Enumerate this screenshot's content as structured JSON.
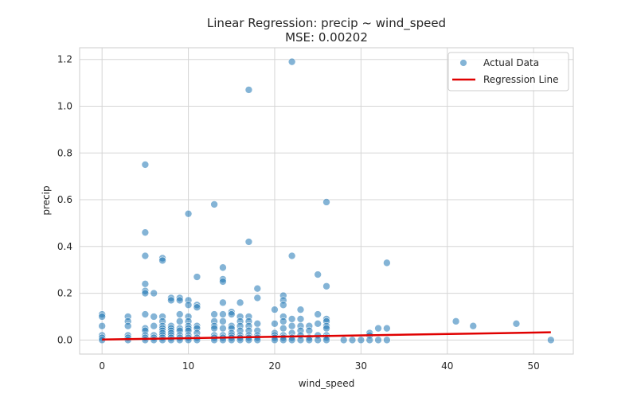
{
  "chart_data": {
    "type": "scatter",
    "title": "Linear Regression: precip ~ wind_speed",
    "subtitle": "MSE: 0.00202",
    "xlabel": "wind_speed",
    "ylabel": "precip",
    "xlim": [
      -2.6,
      54.6
    ],
    "ylim": [
      -0.06,
      1.25
    ],
    "xticks": [
      0,
      10,
      20,
      30,
      40,
      50
    ],
    "yticks": [
      0.0,
      0.2,
      0.4,
      0.6,
      0.8,
      1.0,
      1.2
    ],
    "xtick_labels": [
      "0",
      "10",
      "20",
      "30",
      "40",
      "50"
    ],
    "ytick_labels": [
      "0.0",
      "0.2",
      "0.4",
      "0.6",
      "0.8",
      "1.0",
      "1.2"
    ],
    "grid": true,
    "legend_position": "top-right",
    "colors": {
      "points": "#1f77b4",
      "regression": "#e00000",
      "grid": "#d5d5d5"
    },
    "series": [
      {
        "name": "Actual Data",
        "kind": "scatter",
        "points": [
          [
            0,
            0.11
          ],
          [
            0,
            0.1
          ],
          [
            0,
            0.06
          ],
          [
            0,
            0.02
          ],
          [
            0,
            0.01
          ],
          [
            0,
            0.0
          ],
          [
            3,
            0.1
          ],
          [
            3,
            0.08
          ],
          [
            3,
            0.06
          ],
          [
            3,
            0.02
          ],
          [
            3,
            0.01
          ],
          [
            3,
            0.0
          ],
          [
            5,
            0.75
          ],
          [
            5,
            0.46
          ],
          [
            5,
            0.36
          ],
          [
            5,
            0.24
          ],
          [
            5,
            0.21
          ],
          [
            5,
            0.2
          ],
          [
            5,
            0.11
          ],
          [
            5,
            0.05
          ],
          [
            5,
            0.04
          ],
          [
            5,
            0.02
          ],
          [
            5,
            0.01
          ],
          [
            5,
            0.0
          ],
          [
            6,
            0.2
          ],
          [
            6,
            0.1
          ],
          [
            6,
            0.06
          ],
          [
            6,
            0.02
          ],
          [
            6,
            0.01
          ],
          [
            6,
            0.0
          ],
          [
            7,
            0.35
          ],
          [
            7,
            0.34
          ],
          [
            7,
            0.1
          ],
          [
            7,
            0.08
          ],
          [
            7,
            0.06
          ],
          [
            7,
            0.05
          ],
          [
            7,
            0.04
          ],
          [
            7,
            0.03
          ],
          [
            7,
            0.02
          ],
          [
            7,
            0.01
          ],
          [
            7,
            0.0
          ],
          [
            8,
            0.18
          ],
          [
            8,
            0.17
          ],
          [
            8,
            0.06
          ],
          [
            8,
            0.05
          ],
          [
            8,
            0.04
          ],
          [
            8,
            0.03
          ],
          [
            8,
            0.02
          ],
          [
            8,
            0.01
          ],
          [
            8,
            0.0
          ],
          [
            9,
            0.18
          ],
          [
            9,
            0.17
          ],
          [
            9,
            0.11
          ],
          [
            9,
            0.08
          ],
          [
            9,
            0.05
          ],
          [
            9,
            0.04
          ],
          [
            9,
            0.02
          ],
          [
            9,
            0.01
          ],
          [
            9,
            0.0
          ],
          [
            10,
            0.54
          ],
          [
            10,
            0.17
          ],
          [
            10,
            0.15
          ],
          [
            10,
            0.1
          ],
          [
            10,
            0.08
          ],
          [
            10,
            0.06
          ],
          [
            10,
            0.05
          ],
          [
            10,
            0.04
          ],
          [
            10,
            0.02
          ],
          [
            10,
            0.01
          ],
          [
            10,
            0.0
          ],
          [
            11,
            0.27
          ],
          [
            11,
            0.15
          ],
          [
            11,
            0.14
          ],
          [
            11,
            0.06
          ],
          [
            11,
            0.05
          ],
          [
            11,
            0.03
          ],
          [
            11,
            0.01
          ],
          [
            11,
            0.0
          ],
          [
            13,
            0.58
          ],
          [
            13,
            0.11
          ],
          [
            13,
            0.08
          ],
          [
            13,
            0.06
          ],
          [
            13,
            0.05
          ],
          [
            13,
            0.02
          ],
          [
            13,
            0.01
          ],
          [
            13,
            0.0
          ],
          [
            14,
            0.31
          ],
          [
            14,
            0.26
          ],
          [
            14,
            0.25
          ],
          [
            14,
            0.16
          ],
          [
            14,
            0.11
          ],
          [
            14,
            0.08
          ],
          [
            14,
            0.05
          ],
          [
            14,
            0.02
          ],
          [
            14,
            0.01
          ],
          [
            14,
            0.0
          ],
          [
            15,
            0.12
          ],
          [
            15,
            0.11
          ],
          [
            15,
            0.06
          ],
          [
            15,
            0.05
          ],
          [
            15,
            0.03
          ],
          [
            15,
            0.02
          ],
          [
            15,
            0.01
          ],
          [
            15,
            0.0
          ],
          [
            16,
            0.16
          ],
          [
            16,
            0.1
          ],
          [
            16,
            0.08
          ],
          [
            16,
            0.06
          ],
          [
            16,
            0.04
          ],
          [
            16,
            0.02
          ],
          [
            16,
            0.01
          ],
          [
            16,
            0.0
          ],
          [
            17,
            1.07
          ],
          [
            17,
            0.42
          ],
          [
            17,
            0.1
          ],
          [
            17,
            0.08
          ],
          [
            17,
            0.06
          ],
          [
            17,
            0.04
          ],
          [
            17,
            0.02
          ],
          [
            17,
            0.01
          ],
          [
            17,
            0.0
          ],
          [
            18,
            0.22
          ],
          [
            18,
            0.18
          ],
          [
            18,
            0.07
          ],
          [
            18,
            0.04
          ],
          [
            18,
            0.02
          ],
          [
            18,
            0.01
          ],
          [
            18,
            0.0
          ],
          [
            20,
            0.13
          ],
          [
            20,
            0.07
          ],
          [
            20,
            0.03
          ],
          [
            20,
            0.02
          ],
          [
            20,
            0.01
          ],
          [
            20,
            0.0
          ],
          [
            21,
            0.19
          ],
          [
            21,
            0.17
          ],
          [
            21,
            0.15
          ],
          [
            21,
            0.1
          ],
          [
            21,
            0.08
          ],
          [
            21,
            0.05
          ],
          [
            21,
            0.02
          ],
          [
            21,
            0.01
          ],
          [
            21,
            0.0
          ],
          [
            22,
            1.19
          ],
          [
            22,
            0.36
          ],
          [
            22,
            0.09
          ],
          [
            22,
            0.06
          ],
          [
            22,
            0.03
          ],
          [
            22,
            0.01
          ],
          [
            22,
            0.0
          ],
          [
            23,
            0.13
          ],
          [
            23,
            0.09
          ],
          [
            23,
            0.06
          ],
          [
            23,
            0.04
          ],
          [
            23,
            0.02
          ],
          [
            23,
            0.0
          ],
          [
            24,
            0.06
          ],
          [
            24,
            0.04
          ],
          [
            24,
            0.01
          ],
          [
            24,
            0.0
          ],
          [
            25,
            0.28
          ],
          [
            25,
            0.11
          ],
          [
            25,
            0.07
          ],
          [
            25,
            0.02
          ],
          [
            25,
            0.0
          ],
          [
            26,
            0.59
          ],
          [
            26,
            0.23
          ],
          [
            26,
            0.09
          ],
          [
            26,
            0.08
          ],
          [
            26,
            0.06
          ],
          [
            26,
            0.05
          ],
          [
            26,
            0.02
          ],
          [
            26,
            0.01
          ],
          [
            26,
            0.0
          ],
          [
            28,
            0.0
          ],
          [
            29,
            0.0
          ],
          [
            30,
            0.0
          ],
          [
            31,
            0.03
          ],
          [
            31,
            0.02
          ],
          [
            31,
            0.0
          ],
          [
            32,
            0.05
          ],
          [
            32,
            0.0
          ],
          [
            33,
            0.33
          ],
          [
            33,
            0.05
          ],
          [
            33,
            0.0
          ],
          [
            41,
            0.08
          ],
          [
            43,
            0.06
          ],
          [
            48,
            0.07
          ],
          [
            52,
            0.0
          ]
        ]
      },
      {
        "name": "Regression Line",
        "kind": "line",
        "x": [
          0,
          52
        ],
        "y": [
          0.002,
          0.033
        ]
      }
    ]
  }
}
